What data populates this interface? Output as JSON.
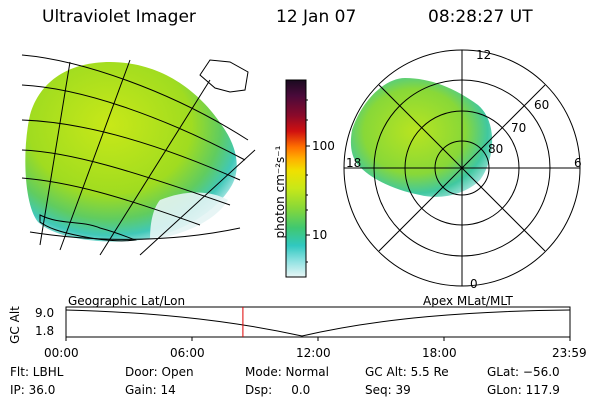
{
  "header": {
    "title": "Ultraviolet Imager",
    "date": "12 Jan 07",
    "time": "08:28:27 UT"
  },
  "colorbar": {
    "unit_label": "photon cm⁻²s⁻¹",
    "ticks": [
      "100",
      "10"
    ],
    "colors": [
      "#1a0a20",
      "#3a0a40",
      "#5a0a3a",
      "#8a0a2a",
      "#c00a10",
      "#e83010",
      "#ff7000",
      "#ffa800",
      "#f0e000",
      "#cfe810",
      "#a8e020",
      "#7ad840",
      "#40c870",
      "#30c8c0",
      "#80e0e0",
      "#d8f2f2"
    ]
  },
  "polar": {
    "mlt_labels": [
      "12",
      "18",
      "6",
      "0"
    ],
    "lat_labels": [
      "60",
      "70",
      "80"
    ]
  },
  "timeline": {
    "left_label": "Geographic Lat/Lon",
    "right_label": "Apex MLat/MLT",
    "axis_label": "GC Alt",
    "y_ticks": [
      "9.0",
      "1.8"
    ],
    "x_ticks": [
      "00:00",
      "06:00",
      "12:00",
      "18:00",
      "23:59"
    ],
    "current_time_fraction": 0.351,
    "marker_color": "#e00000"
  },
  "info": {
    "filter": "Flt: LBHL",
    "ip": "IP: 36.0",
    "door": "Door: Open",
    "gain": "Gain: 14",
    "mode": "Mode: Normal",
    "dsp": "Dsp:     0.0",
    "gc_alt": "GC Alt: 5.5 Re",
    "seq": "Seq: 39",
    "glat": "GLat: −56.0",
    "glon": "GLon: 117.9"
  }
}
